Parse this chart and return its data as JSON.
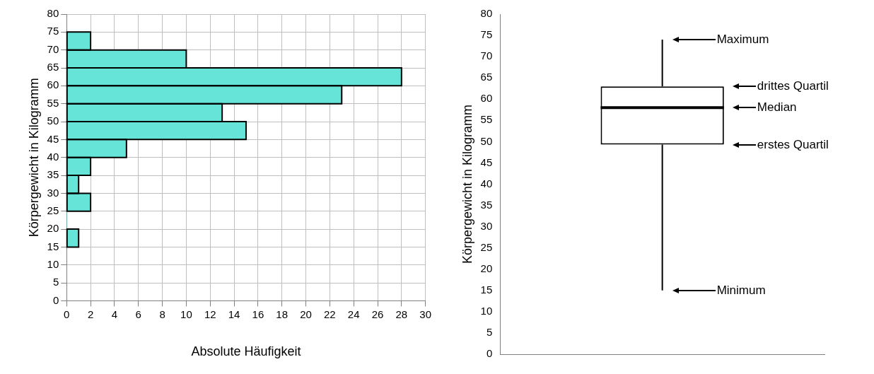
{
  "chart_data": [
    {
      "type": "histogram",
      "orientation": "horizontal",
      "bins": [
        15,
        20,
        25,
        30,
        35,
        40,
        45,
        50,
        55,
        60,
        65,
        70,
        75
      ],
      "values": [
        1,
        0,
        2,
        1,
        2,
        5,
        15,
        13,
        23,
        28,
        10,
        2
      ],
      "color": "#66e4d7",
      "xlim": [
        0,
        30
      ],
      "xticks": [
        0,
        2,
        4,
        6,
        8,
        10,
        12,
        14,
        16,
        18,
        20,
        22,
        24,
        26,
        28,
        30
      ],
      "ylim": [
        0,
        80
      ],
      "yticks": [
        0,
        5,
        10,
        15,
        20,
        25,
        30,
        35,
        40,
        45,
        50,
        55,
        60,
        65,
        70,
        75,
        80
      ],
      "xlabel": "Absolute Häufigkeit",
      "ylabel": "Körpergewicht in Kilogramm",
      "grid": true
    },
    {
      "type": "box",
      "categories": [
        null
      ],
      "boxes": [
        {
          "low": 15,
          "q1": 49.3,
          "median": 58,
          "q3": 63,
          "high": 74
        }
      ],
      "ylim": [
        0,
        80
      ],
      "yticks": [
        0,
        5,
        10,
        15,
        20,
        25,
        30,
        35,
        40,
        45,
        50,
        55,
        60,
        65,
        70,
        75,
        80
      ],
      "ylabel": "Körpergewicht in Kilogramm",
      "tick_labels": "y",
      "annotations": [
        "Maximum",
        "drittes Quartil",
        "Median",
        "erstes Quartil",
        "Minimum"
      ]
    }
  ]
}
